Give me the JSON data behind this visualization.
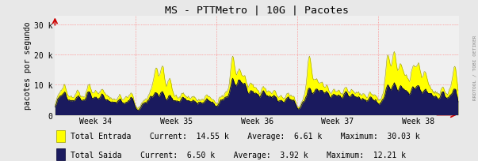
{
  "title": "MS - PTTMetro | 10G | Pacotes",
  "ylabel": "pacotes por segundo",
  "background_color": "#e8e8e8",
  "plot_bg_color": "#e8e8e8",
  "inner_bg_color": "#f0f0f0",
  "grid_color": "#ff9999",
  "ylim": [
    0,
    33000
  ],
  "yticks": [
    0,
    10000,
    20000,
    30000
  ],
  "ytick_labels": [
    "0",
    "10 k",
    "20 k",
    "30 k"
  ],
  "weeks": [
    "Week 34",
    "Week 35",
    "Week 36",
    "Week 37",
    "Week 38"
  ],
  "entrada_color": "#ffff00",
  "entrada_line_color": "#999900",
  "saida_color": "#1a1a5e",
  "saida_line_color": "#000033",
  "legend": [
    {
      "label": "Total Entrada",
      "current": "14.55 k",
      "average": "6.61 k",
      "maximum": "30.03 k",
      "color": "#ffff00",
      "edge": "#999900"
    },
    {
      "label": "Total Saida",
      "current": "6.50 k",
      "average": "3.92 k",
      "maximum": "12.21 k",
      "color": "#1a1a5e",
      "edge": "#000033"
    }
  ],
  "watermark": "RRDTOOL / TOBI OETIKER",
  "n_points": 500,
  "seed": 42,
  "week_boundaries": [
    0,
    100,
    200,
    300,
    400,
    500
  ],
  "vline_color": "#ff6666",
  "arrow_color": "#cc0000"
}
